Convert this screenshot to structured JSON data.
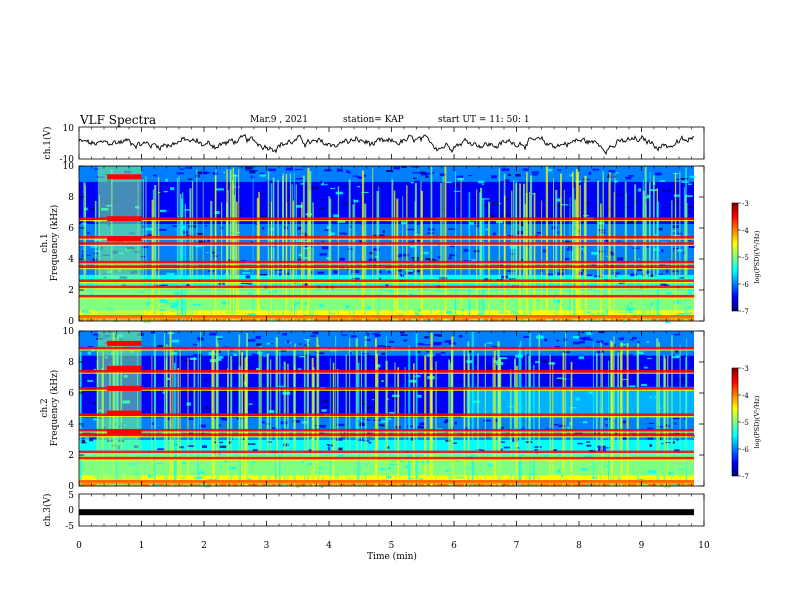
{
  "header": {
    "title": "VLF Spectra",
    "date": "Mar.9 , 2021",
    "station": "station= KAP",
    "start": "start UT = 11: 50: 1"
  },
  "colors": {
    "scale": [
      "#00007f",
      "#0000ff",
      "#0080ff",
      "#00ffff",
      "#80ff80",
      "#ffff00",
      "#ff8000",
      "#ff0000",
      "#7f0000"
    ]
  },
  "chart_data": [
    {
      "type": "line",
      "name": "ch1-waveform",
      "ylabel": "ch.1(V)",
      "ylim": [
        -10,
        10
      ],
      "yticks": [
        "10",
        "-10"
      ],
      "xlim": [
        0,
        10
      ]
    },
    {
      "type": "heatmap",
      "name": "ch1-spectrogram",
      "ylabel": "ch.1\nFrequency (kHz)",
      "ylim": [
        0,
        10
      ],
      "yticks": [
        "0",
        "2",
        "4",
        "6",
        "8",
        "10"
      ],
      "xlim": [
        0,
        10
      ],
      "colorbar": {
        "label": "log(PSD)(V²/Hz)",
        "ticks": [
          "-3",
          "-4",
          "-5",
          "-6",
          "-7"
        ],
        "range": [
          -7,
          -3
        ]
      },
      "lines_kHz": [
        0.3,
        1.6,
        2.2,
        2.6,
        3.5,
        3.8,
        5.0,
        5.4,
        6.6
      ]
    },
    {
      "type": "heatmap",
      "name": "ch2-spectrogram",
      "ylabel": "ch.2\nFrequency (kHz)",
      "ylim": [
        0,
        10
      ],
      "yticks": [
        "0",
        "2",
        "4",
        "6",
        "8",
        "10"
      ],
      "xlim": [
        0,
        10
      ],
      "colorbar": {
        "label": "log(PSD)(V²/Hz)",
        "ticks": [
          "-3",
          "-4",
          "-5",
          "-6",
          "-7"
        ],
        "range": [
          -7,
          -3
        ]
      },
      "lines_kHz": [
        0.3,
        1.8,
        2.2,
        3.3,
        3.6,
        4.6,
        6.3,
        7.4,
        8.9
      ]
    },
    {
      "type": "line",
      "name": "ch3-waveform",
      "ylabel": "ch.3(V)",
      "ylim": [
        -5,
        5
      ],
      "yticks": [
        "5",
        "0",
        "-5"
      ],
      "xlim": [
        0,
        10
      ],
      "xlabel": "Time (min)",
      "xticks": [
        "0",
        "1",
        "2",
        "3",
        "4",
        "5",
        "6",
        "7",
        "8",
        "9",
        "10"
      ],
      "level_V": -0.7
    }
  ]
}
